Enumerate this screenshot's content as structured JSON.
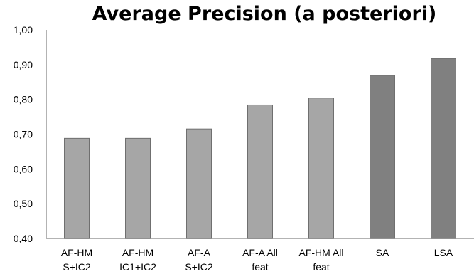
{
  "chart_data": {
    "type": "bar",
    "title": "Average Precision (a posteriori)",
    "xlabel": "",
    "ylabel": "",
    "ylim": [
      0.4,
      1.0
    ],
    "yticks": [
      "0,40",
      "0,50",
      "0,60",
      "0,70",
      "0,80",
      "0,90",
      "1,00"
    ],
    "categories": [
      [
        "AF-HM",
        "S+IC2"
      ],
      [
        "AF-HM",
        "IC1+IC2"
      ],
      [
        "AF-A",
        "S+IC2"
      ],
      [
        "AF-A All",
        "feat"
      ],
      [
        "AF-HM All",
        "feat"
      ],
      [
        "SA"
      ],
      [
        "LSA"
      ]
    ],
    "values": [
      0.688,
      0.688,
      0.715,
      0.784,
      0.804,
      0.869,
      0.917
    ],
    "bar_colors": [
      "#a6a6a6",
      "#a6a6a6",
      "#a6a6a6",
      "#a6a6a6",
      "#a6a6a6",
      "#808080",
      "#808080"
    ],
    "grid": true,
    "grid_values": [
      0.6,
      0.7,
      0.8,
      0.9
    ]
  }
}
